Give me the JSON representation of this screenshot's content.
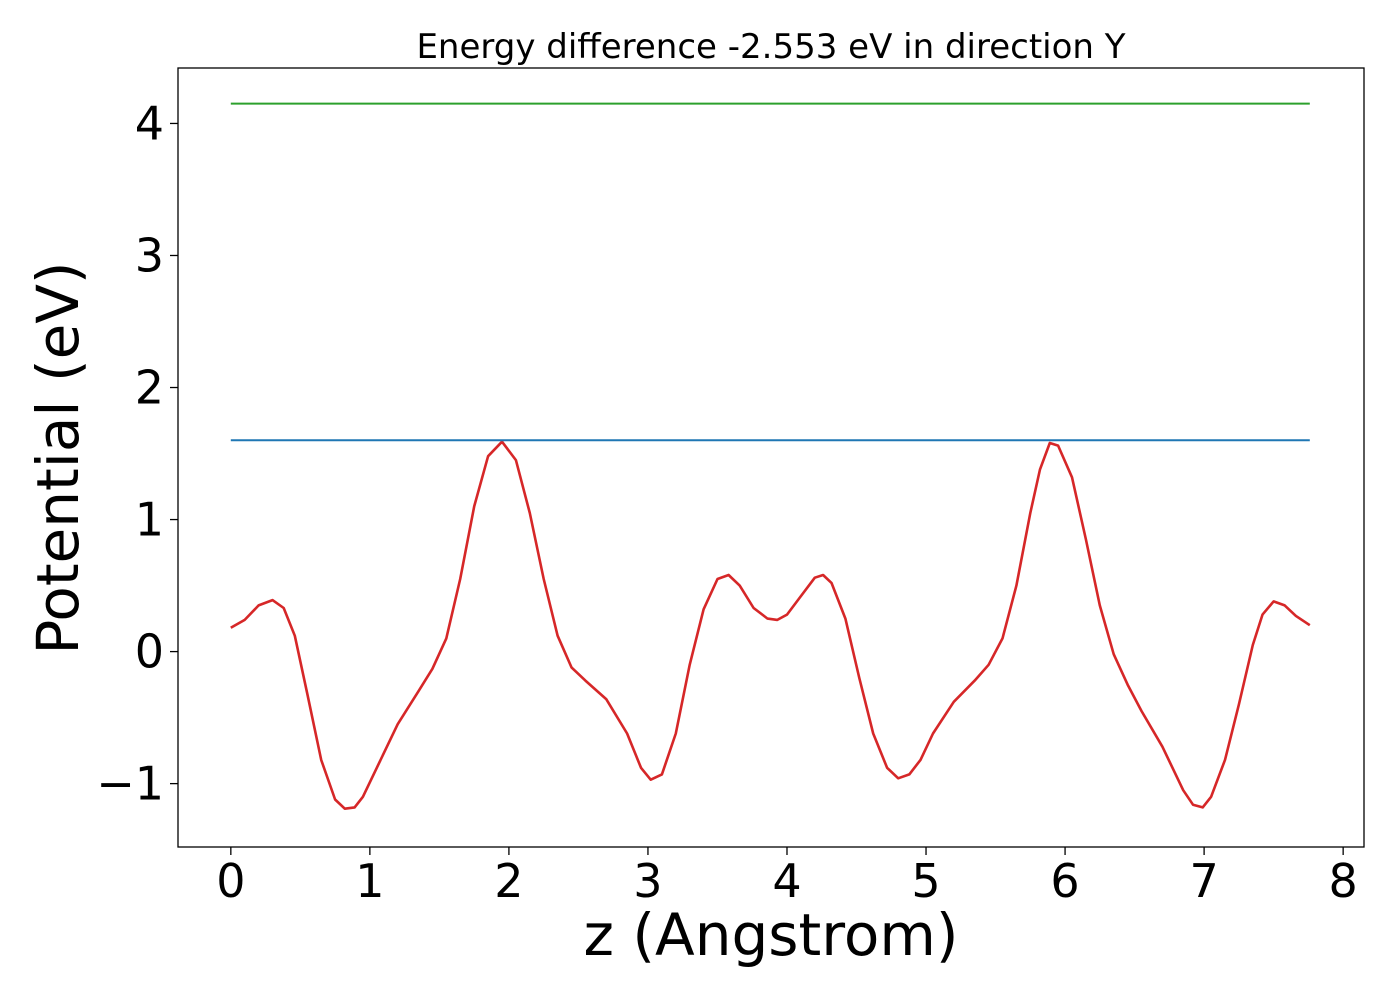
{
  "chart_data": {
    "type": "line",
    "title": "Energy difference -2.553 eV in direction Y",
    "xlabel": "z (Angstrom)",
    "ylabel": "Potential (eV)",
    "xlim": [
      -0.38,
      8.15
    ],
    "ylim": [
      -1.48,
      4.42
    ],
    "xticks": [
      0,
      1,
      2,
      3,
      4,
      5,
      6,
      7,
      8
    ],
    "xtick_labels": [
      "0",
      "1",
      "2",
      "3",
      "4",
      "5",
      "6",
      "7",
      "8"
    ],
    "yticks": [
      -1,
      0,
      1,
      2,
      3,
      4
    ],
    "ytick_labels": [
      "−1",
      "0",
      "1",
      "2",
      "3",
      "4"
    ],
    "grid": false,
    "series": [
      {
        "color": "#d62728",
        "x": [
          0,
          0.1,
          0.2,
          0.3,
          0.38,
          0.46,
          0.55,
          0.65,
          0.75,
          0.82,
          0.89,
          0.95,
          1.05,
          1.2,
          1.35,
          1.45,
          1.55,
          1.65,
          1.75,
          1.85,
          1.95,
          2.05,
          2.15,
          2.25,
          2.35,
          2.45,
          2.55,
          2.7,
          2.85,
          2.95,
          3.02,
          3.1,
          3.2,
          3.3,
          3.4,
          3.5,
          3.58,
          3.66,
          3.76,
          3.86,
          3.93,
          4.0,
          4.1,
          4.2,
          4.26,
          4.32,
          4.42,
          4.52,
          4.62,
          4.72,
          4.8,
          4.88,
          4.96,
          5.05,
          5.2,
          5.35,
          5.45,
          5.55,
          5.65,
          5.75,
          5.82,
          5.89,
          5.95,
          6.05,
          6.15,
          6.25,
          6.35,
          6.45,
          6.55,
          6.7,
          6.85,
          6.92,
          6.99,
          7.05,
          7.15,
          7.25,
          7.35,
          7.42,
          7.5,
          7.58,
          7.66,
          7.76
        ],
        "y": [
          0.18,
          0.24,
          0.35,
          0.39,
          0.33,
          0.12,
          -0.32,
          -0.82,
          -1.12,
          -1.19,
          -1.18,
          -1.1,
          -0.88,
          -0.55,
          -0.3,
          -0.13,
          0.1,
          0.55,
          1.1,
          1.48,
          1.59,
          1.45,
          1.05,
          0.55,
          0.12,
          -0.12,
          -0.22,
          -0.36,
          -0.62,
          -0.88,
          -0.97,
          -0.93,
          -0.62,
          -0.1,
          0.32,
          0.55,
          0.58,
          0.5,
          0.33,
          0.25,
          0.24,
          0.28,
          0.42,
          0.56,
          0.58,
          0.52,
          0.25,
          -0.2,
          -0.62,
          -0.88,
          -0.96,
          -0.93,
          -0.82,
          -0.62,
          -0.38,
          -0.22,
          -0.1,
          0.1,
          0.5,
          1.05,
          1.38,
          1.58,
          1.56,
          1.32,
          0.85,
          0.35,
          -0.02,
          -0.25,
          -0.45,
          -0.72,
          -1.05,
          -1.16,
          -1.18,
          -1.1,
          -0.82,
          -0.4,
          0.05,
          0.28,
          0.38,
          0.35,
          0.27,
          0.2
        ]
      },
      {
        "color": "#1f77b4",
        "x": [
          0,
          7.76
        ],
        "y": [
          1.6,
          1.6
        ]
      },
      {
        "color": "#2ca02c",
        "x": [
          0,
          7.76
        ],
        "y": [
          4.15,
          4.15
        ]
      }
    ]
  }
}
